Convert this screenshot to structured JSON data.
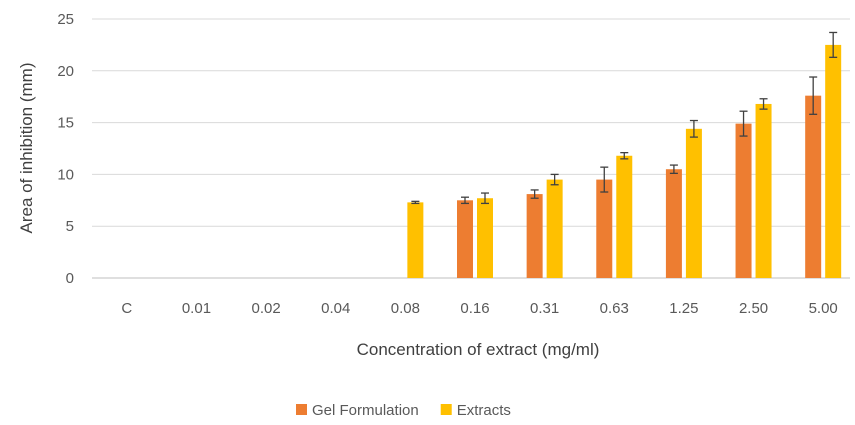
{
  "chart_data": {
    "type": "bar",
    "categories": [
      "C",
      "0.01",
      "0.02",
      "0.04",
      "0.08",
      "0.16",
      "0.31",
      "0.63",
      "1.25",
      "2.50",
      "5.00"
    ],
    "series": [
      {
        "name": "Gel Formulation",
        "color": "#ED7D31",
        "values": [
          0,
          0,
          0,
          0,
          0,
          7.5,
          8.1,
          9.5,
          10.5,
          14.9,
          17.6
        ],
        "errors": [
          0,
          0,
          0,
          0,
          0,
          0.3,
          0.4,
          1.2,
          0.4,
          1.2,
          1.8
        ]
      },
      {
        "name": "Extracts",
        "color": "#FFC000",
        "values": [
          0,
          0,
          0,
          0,
          7.3,
          7.7,
          9.5,
          11.8,
          14.4,
          16.8,
          22.5
        ],
        "errors": [
          0,
          0,
          0,
          0,
          0.1,
          0.5,
          0.5,
          0.3,
          0.8,
          0.5,
          1.2
        ]
      }
    ],
    "xlabel": "Concentration of extract (mg/ml)",
    "ylabel": "Area of inhibition (mm)",
    "ylim": [
      0,
      25
    ],
    "yticks": [
      "0",
      "5",
      "10",
      "15",
      "20",
      "25"
    ],
    "grid": true,
    "legend_position": "bottom"
  }
}
